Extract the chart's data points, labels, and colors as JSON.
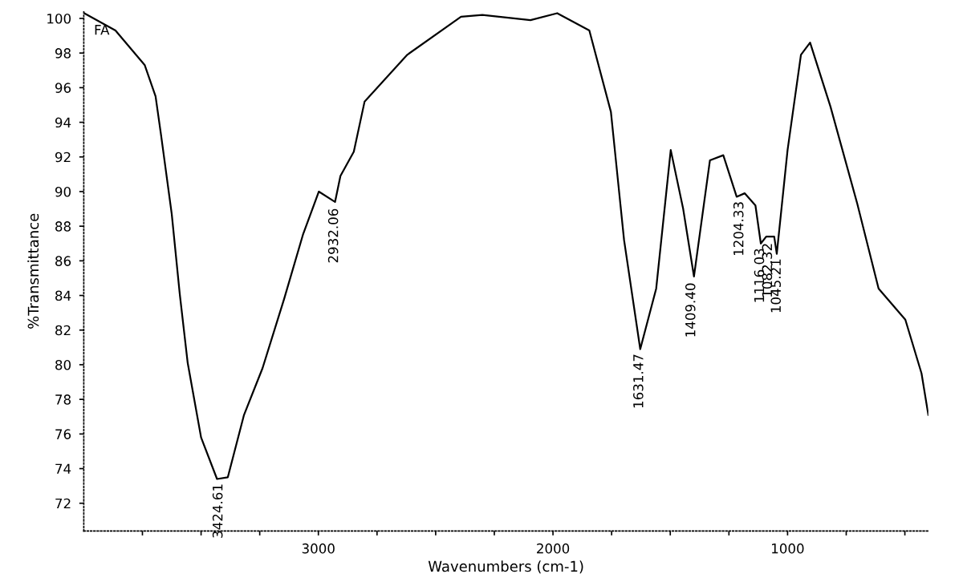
{
  "chart_data": {
    "type": "line",
    "xlabel": "Wavenumbers (cm-1)",
    "ylabel": "%Transmittance",
    "color": "#000000",
    "x": [
      3998,
      3865,
      3740,
      3694,
      3671,
      3625,
      3591,
      3557,
      3500,
      3432,
      3386,
      3317,
      3238,
      3146,
      3066,
      2998,
      2929,
      2906,
      2849,
      2803,
      2621,
      2392,
      2301,
      2096,
      1982,
      1845,
      1753,
      1697,
      1628,
      1560,
      1498,
      1445,
      1399,
      1331,
      1274,
      1217,
      1183,
      1137,
      1114,
      1091,
      1057,
      1046,
      1000,
      943,
      904,
      817,
      703,
      612,
      498,
      429,
      400
    ],
    "values": [
      100.3,
      99.3,
      97.3,
      95.5,
      93.3,
      88.7,
      84.1,
      80.1,
      75.8,
      73.4,
      73.5,
      77.1,
      79.8,
      83.8,
      87.5,
      90.0,
      89.4,
      90.9,
      92.3,
      95.2,
      97.9,
      100.1,
      100.2,
      99.9,
      100.3,
      99.3,
      94.6,
      87.2,
      80.9,
      84.4,
      92.4,
      89.0,
      85.1,
      91.8,
      92.1,
      89.7,
      89.9,
      89.2,
      87.0,
      87.4,
      87.4,
      86.4,
      92.4,
      97.9,
      98.6,
      94.9,
      89.3,
      84.4,
      82.6,
      79.5,
      77.1
    ],
    "xlim": [
      4000,
      400
    ],
    "ylim": [
      70.4,
      100.4
    ],
    "xticks": [
      {
        "value": 3750,
        "label": null
      },
      {
        "value": 3500,
        "label": null
      },
      {
        "value": 3250,
        "label": null
      },
      3000,
      {
        "value": 2750,
        "label": null
      },
      {
        "value": 2500,
        "label": null
      },
      {
        "value": 2250,
        "label": null
      },
      2000,
      {
        "value": 1750,
        "label": null
      },
      {
        "value": 1500,
        "label": null
      },
      {
        "value": 1250,
        "label": null
      },
      1000,
      {
        "value": 750,
        "label": null
      },
      {
        "value": 500,
        "label": null
      }
    ],
    "yticks": [
      72,
      74,
      76,
      78,
      80,
      82,
      84,
      86,
      88,
      90,
      92,
      94,
      96,
      98,
      100
    ],
    "grid": false,
    "legend": false,
    "marker": "none",
    "line_style": "solid",
    "annotations": [
      "FA",
      {
        "text": "3424.61",
        "x": 3424.61,
        "y": 73.4
      },
      {
        "text": "2932.06",
        "x": 2932.06,
        "y": 89.3
      },
      {
        "text": "1631.47",
        "x": 1631.47,
        "y": 80.9
      },
      {
        "text": "1409.40",
        "x": 1409.4,
        "y": 85.0
      },
      {
        "text": "1204.33",
        "x": 1204.33,
        "y": 89.7
      },
      {
        "text": "1116.03",
        "x": 1116.03,
        "y": 87.0
      },
      {
        "text": "1082.32",
        "x": 1082.32,
        "y": 87.3
      },
      {
        "text": "1045.21",
        "x": 1045.21,
        "y": 86.4
      }
    ]
  }
}
